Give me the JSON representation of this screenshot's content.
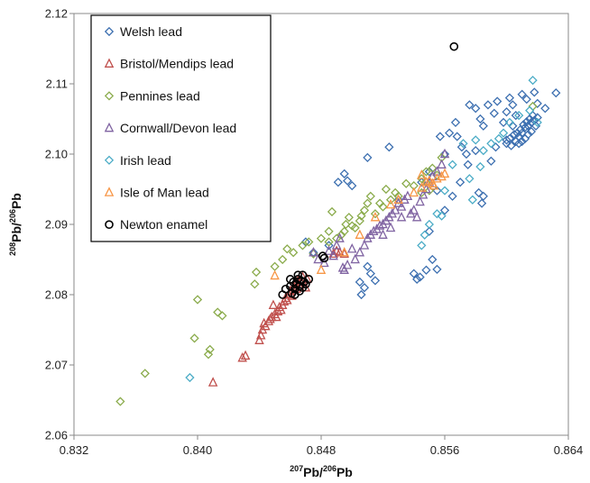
{
  "chart_data": {
    "type": "scatter",
    "title": "",
    "xlabel": {
      "sup1": "207",
      "base1": "Pb/",
      "sup2": "206",
      "base2": "Pb"
    },
    "ylabel": {
      "sup1": "208",
      "base1": "Pb/",
      "sup2": "206",
      "base2": "Pb"
    },
    "xlim": [
      0.832,
      0.864
    ],
    "ylim": [
      2.06,
      2.12
    ],
    "xticks": [
      "0.832",
      "0.840",
      "0.848",
      "0.856",
      "0.864"
    ],
    "yticks": [
      "2.06",
      "2.07",
      "2.08",
      "2.09",
      "2.10",
      "2.11",
      "2.12"
    ],
    "grid": false,
    "legend_position": "top-left",
    "series": [
      {
        "name": "Welsh lead",
        "marker": "diamond",
        "color": "#3c6fb0",
        "points": [
          [
            0.8491,
            2.096
          ],
          [
            0.8495,
            2.0972
          ],
          [
            0.8497,
            2.0962
          ],
          [
            0.85,
            2.0955
          ],
          [
            0.851,
            2.0995
          ],
          [
            0.8524,
            2.101
          ],
          [
            0.853,
            2.0935
          ],
          [
            0.8545,
            2.096
          ],
          [
            0.855,
            2.0975
          ],
          [
            0.8555,
            2.0948
          ],
          [
            0.8557,
            2.1025
          ],
          [
            0.856,
            2.1
          ],
          [
            0.8563,
            2.103
          ],
          [
            0.8567,
            2.1045
          ],
          [
            0.8568,
            2.1025
          ],
          [
            0.8571,
            2.101
          ],
          [
            0.8574,
            2.1
          ],
          [
            0.8576,
            2.107
          ],
          [
            0.858,
            2.1065
          ],
          [
            0.8583,
            2.105
          ],
          [
            0.8585,
            2.104
          ],
          [
            0.8588,
            2.107
          ],
          [
            0.8592,
            2.1058
          ],
          [
            0.8594,
            2.1075
          ],
          [
            0.8598,
            2.1045
          ],
          [
            0.86,
            2.106
          ],
          [
            0.8602,
            2.108
          ],
          [
            0.8604,
            2.107
          ],
          [
            0.8606,
            2.1055
          ],
          [
            0.861,
            2.1085
          ],
          [
            0.8613,
            2.1078
          ],
          [
            0.8618,
            2.1088
          ],
          [
            0.862,
            2.1072
          ],
          [
            0.8625,
            2.1065
          ],
          [
            0.8632,
            2.1087
          ],
          [
            0.855,
            2.089
          ],
          [
            0.856,
            2.092
          ],
          [
            0.8565,
            2.094
          ],
          [
            0.857,
            2.096
          ],
          [
            0.8575,
            2.0985
          ],
          [
            0.858,
            2.1005
          ],
          [
            0.8582,
            2.0945
          ],
          [
            0.8585,
            2.094
          ],
          [
            0.8584,
            2.093
          ],
          [
            0.859,
            2.099
          ],
          [
            0.8593,
            2.101
          ],
          [
            0.86,
            2.102
          ],
          [
            0.8604,
            2.104
          ],
          [
            0.8505,
            2.0818
          ],
          [
            0.8508,
            2.081
          ],
          [
            0.8512,
            2.083
          ],
          [
            0.8515,
            2.082
          ],
          [
            0.854,
            2.083
          ],
          [
            0.8542,
            2.0822
          ],
          [
            0.8544,
            2.0825
          ],
          [
            0.8548,
            2.0835
          ],
          [
            0.8552,
            2.085
          ],
          [
            0.8555,
            2.0836
          ],
          [
            0.8506,
            2.08
          ],
          [
            0.851,
            2.084
          ],
          [
            0.847,
            2.0875
          ],
          [
            0.8475,
            2.086
          ],
          [
            0.8485,
            2.087
          ],
          [
            0.86,
            2.1015
          ],
          [
            0.8602,
            2.1022
          ],
          [
            0.8603,
            2.1012
          ],
          [
            0.8605,
            2.1028
          ],
          [
            0.8606,
            2.1018
          ],
          [
            0.8607,
            2.103
          ],
          [
            0.8608,
            2.1025
          ],
          [
            0.8609,
            2.1035
          ],
          [
            0.861,
            2.103
          ],
          [
            0.8611,
            2.1042
          ],
          [
            0.8612,
            2.1038
          ],
          [
            0.8613,
            2.1046
          ],
          [
            0.8614,
            2.104
          ],
          [
            0.8615,
            2.105
          ],
          [
            0.8616,
            2.1045
          ],
          [
            0.8617,
            2.1055
          ],
          [
            0.8618,
            2.1048
          ],
          [
            0.8619,
            2.104
          ],
          [
            0.862,
            2.1052
          ],
          [
            0.8616,
            2.1032
          ],
          [
            0.8614,
            2.1028
          ],
          [
            0.8612,
            2.1022
          ],
          [
            0.861,
            2.1018
          ],
          [
            0.8608,
            2.1015
          ]
        ]
      },
      {
        "name": "Bristol/Mendips lead",
        "marker": "triangle",
        "color": "#c0504d",
        "points": [
          [
            0.841,
            2.0675
          ],
          [
            0.8429,
            2.071
          ],
          [
            0.8431,
            2.0713
          ],
          [
            0.844,
            2.0735
          ],
          [
            0.8441,
            2.0742
          ],
          [
            0.8442,
            2.075
          ],
          [
            0.8444,
            2.0755
          ],
          [
            0.8446,
            2.0762
          ],
          [
            0.8448,
            2.0768
          ],
          [
            0.845,
            2.0772
          ],
          [
            0.8451,
            2.0768
          ],
          [
            0.8452,
            2.0776
          ],
          [
            0.8453,
            2.0782
          ],
          [
            0.8455,
            2.0785
          ],
          [
            0.8456,
            2.079
          ],
          [
            0.8457,
            2.0795
          ],
          [
            0.8458,
            2.0792
          ],
          [
            0.8459,
            2.08
          ],
          [
            0.846,
            2.0805
          ],
          [
            0.8461,
            2.0798
          ],
          [
            0.8462,
            2.081
          ],
          [
            0.8463,
            2.0815
          ],
          [
            0.8464,
            2.0808
          ],
          [
            0.8465,
            2.082
          ],
          [
            0.8466,
            2.0812
          ],
          [
            0.8467,
            2.0818
          ],
          [
            0.8468,
            2.0825
          ],
          [
            0.8454,
            2.0778
          ],
          [
            0.8447,
            2.0765
          ],
          [
            0.8443,
            2.0759
          ],
          [
            0.847,
            2.081
          ],
          [
            0.8471,
            2.0822
          ],
          [
            0.8488,
            2.0858
          ],
          [
            0.849,
            2.0862
          ],
          [
            0.8492,
            2.086
          ],
          [
            0.8495,
            2.0858
          ],
          [
            0.8449,
            2.0785
          ]
        ]
      },
      {
        "name": "Pennines lead",
        "marker": "diamond",
        "color": "#8aab4b",
        "points": [
          [
            0.835,
            2.0648
          ],
          [
            0.8366,
            2.0688
          ],
          [
            0.8398,
            2.0738
          ],
          [
            0.84,
            2.0793
          ],
          [
            0.8407,
            2.0715
          ],
          [
            0.8408,
            2.0722
          ],
          [
            0.8413,
            2.0775
          ],
          [
            0.8416,
            2.077
          ],
          [
            0.8437,
            2.0815
          ],
          [
            0.8438,
            2.0832
          ],
          [
            0.845,
            2.084
          ],
          [
            0.8455,
            2.085
          ],
          [
            0.8458,
            2.0865
          ],
          [
            0.8462,
            2.086
          ],
          [
            0.8468,
            2.087
          ],
          [
            0.8472,
            2.0875
          ],
          [
            0.8475,
            2.0858
          ],
          [
            0.848,
            2.088
          ],
          [
            0.8485,
            2.0875
          ],
          [
            0.8487,
            2.0918
          ],
          [
            0.849,
            2.088
          ],
          [
            0.8493,
            2.0885
          ],
          [
            0.8495,
            2.089
          ],
          [
            0.8496,
            2.09
          ],
          [
            0.8498,
            2.091
          ],
          [
            0.85,
            2.0898
          ],
          [
            0.8502,
            2.0895
          ],
          [
            0.8505,
            2.0905
          ],
          [
            0.8508,
            2.092
          ],
          [
            0.851,
            2.093
          ],
          [
            0.8512,
            2.094
          ],
          [
            0.8515,
            2.0915
          ],
          [
            0.8518,
            2.093
          ],
          [
            0.852,
            2.0925
          ],
          [
            0.8522,
            2.095
          ],
          [
            0.8525,
            2.0935
          ],
          [
            0.8528,
            2.0945
          ],
          [
            0.853,
            2.094
          ],
          [
            0.8535,
            2.0958
          ],
          [
            0.854,
            2.0955
          ],
          [
            0.8545,
            2.0965
          ],
          [
            0.8548,
            2.0975
          ],
          [
            0.8552,
            2.098
          ],
          [
            0.8555,
            2.097
          ],
          [
            0.8558,
            2.0995
          ],
          [
            0.8545,
            2.0945
          ],
          [
            0.8548,
            2.096
          ],
          [
            0.855,
            2.0948
          ],
          [
            0.8617,
            2.1068
          ],
          [
            0.8485,
            2.089
          ],
          [
            0.8506,
            2.0912
          ]
        ]
      },
      {
        "name": "Cornwall/Devon lead",
        "marker": "triangle",
        "color": "#8064a2",
        "points": [
          [
            0.8475,
            2.086
          ],
          [
            0.8478,
            2.085
          ],
          [
            0.8482,
            2.0845
          ],
          [
            0.8485,
            2.0862
          ],
          [
            0.8488,
            2.0855
          ],
          [
            0.849,
            2.087
          ],
          [
            0.8492,
            2.088
          ],
          [
            0.8494,
            2.0838
          ],
          [
            0.8495,
            2.0835
          ],
          [
            0.8497,
            2.0842
          ],
          [
            0.85,
            2.0865
          ],
          [
            0.8502,
            2.085
          ],
          [
            0.8505,
            2.086
          ],
          [
            0.8508,
            2.087
          ],
          [
            0.851,
            2.088
          ],
          [
            0.8512,
            2.0885
          ],
          [
            0.8514,
            2.089
          ],
          [
            0.8516,
            2.0893
          ],
          [
            0.8518,
            2.0898
          ],
          [
            0.852,
            2.09
          ],
          [
            0.8522,
            2.0905
          ],
          [
            0.8524,
            2.091
          ],
          [
            0.8526,
            2.0915
          ],
          [
            0.8528,
            2.092
          ],
          [
            0.853,
            2.093
          ],
          [
            0.8532,
            2.0925
          ],
          [
            0.8534,
            2.0935
          ],
          [
            0.8536,
            2.094
          ],
          [
            0.8538,
            2.0915
          ],
          [
            0.854,
            2.092
          ],
          [
            0.8542,
            2.091
          ],
          [
            0.8544,
            2.0932
          ],
          [
            0.8546,
            2.0942
          ],
          [
            0.8548,
            2.095
          ],
          [
            0.855,
            2.096
          ],
          [
            0.8552,
            2.0968
          ],
          [
            0.8555,
            2.0975
          ],
          [
            0.8558,
            2.0985
          ],
          [
            0.856,
            2.1
          ],
          [
            0.852,
            2.0885
          ],
          [
            0.8525,
            2.0895
          ],
          [
            0.8532,
            2.091
          ]
        ]
      },
      {
        "name": "Irish lead",
        "marker": "diamond",
        "color": "#4bacc6",
        "points": [
          [
            0.8395,
            2.0682
          ],
          [
            0.8545,
            2.087
          ],
          [
            0.8547,
            2.0885
          ],
          [
            0.855,
            2.09
          ],
          [
            0.8555,
            2.0915
          ],
          [
            0.8558,
            2.0912
          ],
          [
            0.8565,
            2.0985
          ],
          [
            0.8572,
            2.1015
          ],
          [
            0.8576,
            2.0965
          ],
          [
            0.858,
            2.102
          ],
          [
            0.8583,
            2.0982
          ],
          [
            0.8585,
            2.1005
          ],
          [
            0.859,
            2.1015
          ],
          [
            0.8595,
            2.1022
          ],
          [
            0.8598,
            2.103
          ],
          [
            0.8602,
            2.1045
          ],
          [
            0.8608,
            2.1055
          ],
          [
            0.8615,
            2.1062
          ],
          [
            0.862,
            2.1045
          ],
          [
            0.8617,
            2.1105
          ],
          [
            0.8578,
            2.0935
          ],
          [
            0.856,
            2.0948
          ]
        ]
      },
      {
        "name": "Isle of Man lead",
        "marker": "triangle",
        "color": "#f79646",
        "points": [
          [
            0.845,
            2.0827
          ],
          [
            0.848,
            2.0835
          ],
          [
            0.8495,
            2.086
          ],
          [
            0.8505,
            2.0885
          ],
          [
            0.8515,
            2.091
          ],
          [
            0.8525,
            2.0928
          ],
          [
            0.853,
            2.0935
          ],
          [
            0.854,
            2.0945
          ],
          [
            0.8545,
            2.0952
          ],
          [
            0.8548,
            2.096
          ],
          [
            0.855,
            2.0962
          ],
          [
            0.8553,
            2.0955
          ],
          [
            0.8555,
            2.0965
          ],
          [
            0.8558,
            2.0968
          ],
          [
            0.856,
            2.0972
          ],
          [
            0.8545,
            2.097
          ],
          [
            0.8552,
            2.0958
          ]
        ]
      },
      {
        "name": "Newton enamel",
        "marker": "circle",
        "color": "#000000",
        "points": [
          [
            0.8455,
            2.08
          ],
          [
            0.8457,
            2.0808
          ],
          [
            0.846,
            2.0812
          ],
          [
            0.8461,
            2.0802
          ],
          [
            0.8462,
            2.0818
          ],
          [
            0.8463,
            2.0808
          ],
          [
            0.8464,
            2.0815
          ],
          [
            0.8465,
            2.0822
          ],
          [
            0.8466,
            2.0812
          ],
          [
            0.8467,
            2.082
          ],
          [
            0.8468,
            2.0828
          ],
          [
            0.8469,
            2.0818
          ],
          [
            0.847,
            2.0815
          ],
          [
            0.8463,
            2.08
          ],
          [
            0.846,
            2.0822
          ],
          [
            0.8466,
            2.0805
          ],
          [
            0.8472,
            2.0822
          ],
          [
            0.8481,
            2.0855
          ],
          [
            0.8482,
            2.0852
          ],
          [
            0.8566,
            2.1153
          ],
          [
            0.8465,
            2.0828
          ],
          [
            0.8468,
            2.081
          ]
        ]
      }
    ]
  }
}
